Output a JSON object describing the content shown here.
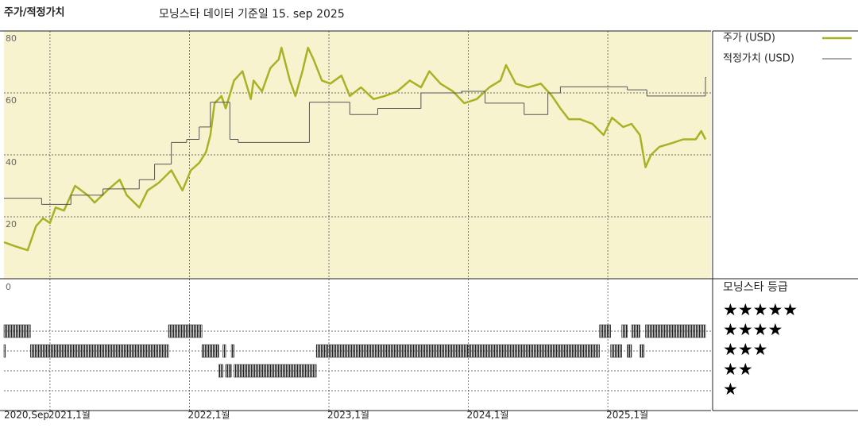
{
  "chart_data": [
    {
      "type": "line",
      "title": "주가/적정가치",
      "subtitle": "모닝스타 데이터 기준일 15. sep 2025",
      "xlim": [
        2020.67,
        2025.74
      ],
      "ylim": [
        0,
        80
      ],
      "yticks": [
        20,
        40,
        60,
        80
      ],
      "xticks": [
        {
          "value": 2020.67,
          "label": "2020,Sep"
        },
        {
          "value": 2021,
          "label": "2021,1월"
        },
        {
          "value": 2022,
          "label": "2022,1월"
        },
        {
          "value": 2023,
          "label": "2023,1월"
        },
        {
          "value": 2024,
          "label": "2024,1월"
        },
        {
          "value": 2025,
          "label": "2025,1월"
        }
      ],
      "grid": true,
      "legend": "right",
      "background": "#f7f3cf",
      "series": [
        {
          "name": "주가 (USD)",
          "color": "#a7b224",
          "step": false,
          "x": [
            2020.67,
            2020.75,
            2020.84,
            2020.9,
            2020.95,
            2021.0,
            2021.04,
            2021.1,
            2021.18,
            2021.27,
            2021.32,
            2021.41,
            2021.5,
            2021.55,
            2021.64,
            2021.7,
            2021.78,
            2021.87,
            2021.95,
            2022.01,
            2022.07,
            2022.12,
            2022.15,
            2022.18,
            2022.23,
            2022.26,
            2022.32,
            2022.38,
            2022.44,
            2022.46,
            2022.52,
            2022.58,
            2022.64,
            2022.66,
            2022.72,
            2022.76,
            2022.81,
            2022.85,
            2022.89,
            2022.95,
            2023.01,
            2023.09,
            2023.15,
            2023.23,
            2023.32,
            2023.4,
            2023.49,
            2023.58,
            2023.66,
            2023.72,
            2023.8,
            2023.89,
            2023.97,
            2024.06,
            2024.15,
            2024.23,
            2024.27,
            2024.34,
            2024.43,
            2024.52,
            2024.6,
            2024.66,
            2024.72,
            2024.8,
            2024.89,
            2024.97,
            2025.03,
            2025.11,
            2025.17,
            2025.23,
            2025.27,
            2025.31,
            2025.37,
            2025.46,
            2025.54,
            2025.63,
            2025.67,
            2025.7
          ],
          "values": [
            11.8,
            10.5,
            9.2,
            17,
            19.5,
            18,
            23,
            22,
            30,
            27,
            24.6,
            28.5,
            32,
            27,
            23,
            28.5,
            31,
            35,
            28.5,
            35,
            37.4,
            41,
            46.4,
            56.7,
            59,
            55,
            64,
            67,
            58,
            64,
            60.5,
            68,
            70.8,
            74.6,
            64,
            59,
            67,
            74.6,
            70.8,
            64,
            63,
            65.6,
            59,
            61.8,
            58,
            59,
            60.5,
            64,
            61.8,
            67,
            63,
            60.5,
            56.7,
            58,
            61.8,
            64,
            69,
            63,
            61.8,
            63,
            59,
            55,
            51.5,
            51.5,
            50,
            46.4,
            52,
            49,
            50,
            46.4,
            36,
            40,
            42.6,
            43.8,
            45,
            45,
            47.7,
            45
          ]
        },
        {
          "name": "적정가치 (USD)",
          "color": "#555555",
          "step": true,
          "x": [
            2020.67,
            2020.94,
            2021.15,
            2021.38,
            2021.64,
            2021.75,
            2021.87,
            2021.98,
            2022.07,
            2022.15,
            2022.29,
            2022.35,
            2022.86,
            2023.15,
            2023.35,
            2023.66,
            2023.95,
            2024.12,
            2024.4,
            2024.57,
            2024.66,
            2025.14,
            2025.28,
            2025.7
          ],
          "values": [
            26,
            24,
            27,
            29,
            32,
            37,
            44,
            45,
            49,
            57,
            45,
            44,
            57,
            53,
            55,
            60,
            60.5,
            56.7,
            53,
            60,
            62,
            61,
            59,
            65
          ]
        }
      ]
    },
    {
      "type": "rating",
      "title": "모닝스타 등급",
      "axis_label": "0",
      "color": "#333333",
      "rating_labels": [
        "★★★★★",
        "★★★★",
        "★★★",
        "★★",
        "★"
      ],
      "periods": [
        {
          "stars": 4,
          "start": 2020.67,
          "end": 2020.86
        },
        {
          "stars": 3,
          "start": 2020.67,
          "end": 2020.68
        },
        {
          "stars": 3,
          "start": 2020.86,
          "end": 2021.85
        },
        {
          "stars": 4,
          "start": 2021.85,
          "end": 2022.09
        },
        {
          "stars": 3,
          "start": 2022.09,
          "end": 2022.21
        },
        {
          "stars": 2,
          "start": 2022.21,
          "end": 2022.24
        },
        {
          "stars": 3,
          "start": 2022.24,
          "end": 2022.26
        },
        {
          "stars": 2,
          "start": 2022.26,
          "end": 2022.3
        },
        {
          "stars": 3,
          "start": 2022.3,
          "end": 2022.32
        },
        {
          "stars": 2,
          "start": 2022.32,
          "end": 2022.91
        },
        {
          "stars": 3,
          "start": 2022.91,
          "end": 2024.94
        },
        {
          "stars": 4,
          "start": 2024.94,
          "end": 2025.02
        },
        {
          "stars": 3,
          "start": 2025.02,
          "end": 2025.1
        },
        {
          "stars": 4,
          "start": 2025.1,
          "end": 2025.14
        },
        {
          "stars": 3,
          "start": 2025.14,
          "end": 2025.17
        },
        {
          "stars": 4,
          "start": 2025.17,
          "end": 2025.23
        },
        {
          "stars": 3,
          "start": 2025.23,
          "end": 2025.26
        },
        {
          "stars": 4,
          "start": 2025.27,
          "end": 2025.7
        }
      ]
    }
  ]
}
